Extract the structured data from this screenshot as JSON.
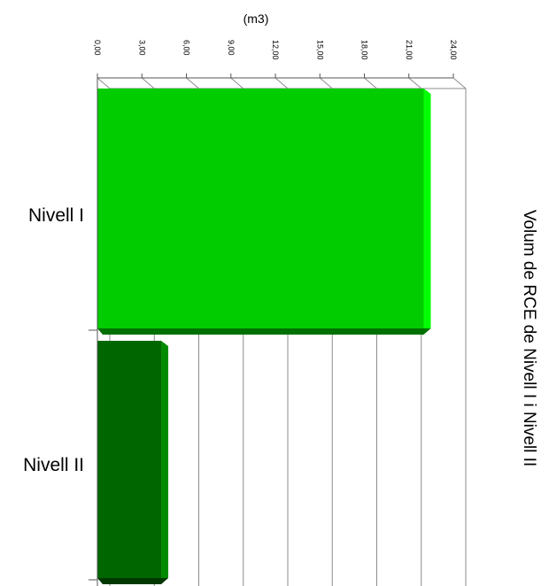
{
  "chart_data": {
    "type": "bar",
    "orientation": "horizontal",
    "title": "Volum de RCE de Nivell I i Nivell II",
    "unit_label": "(m3)",
    "categories": [
      "Nivell I",
      "Nivell II"
    ],
    "values": [
      22.0,
      4.3
    ],
    "colors": [
      "#00cc00",
      "#006600"
    ],
    "xlim": [
      0,
      24
    ],
    "tick_labels": [
      "0,00",
      "3,00",
      "6,00",
      "9,00",
      "12,00",
      "15,00",
      "18,00",
      "21,00",
      "24,00"
    ],
    "grid": true,
    "legend": "none"
  }
}
